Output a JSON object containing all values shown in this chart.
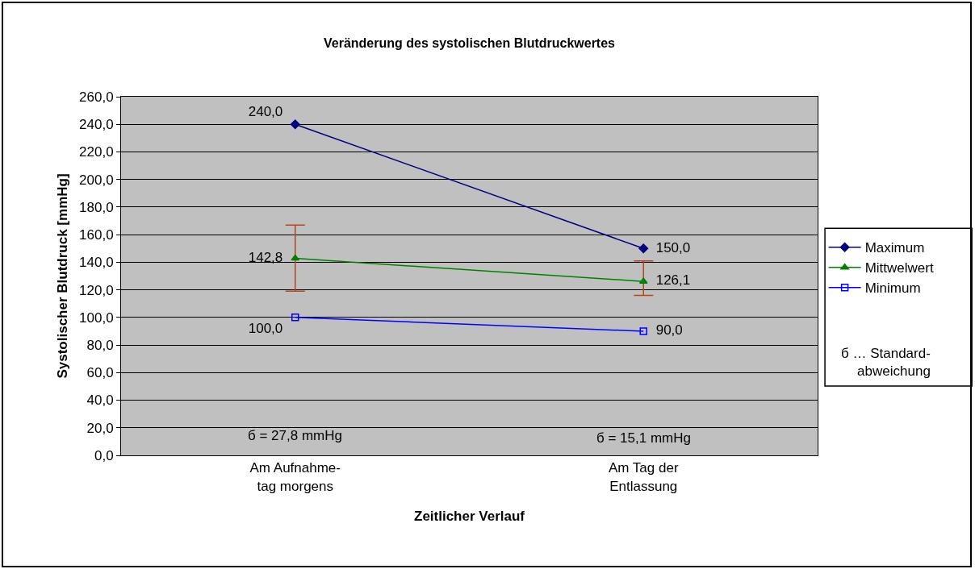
{
  "chart_data": {
    "type": "line",
    "title": "Veränderung des systolischen Blutdruckwertes",
    "xlabel": "Zeitlicher Verlauf",
    "ylabel": "Systolischer Blutdruck [mmHg]",
    "categories": [
      "Am Aufnahme-\ntag morgens",
      "Am Tag der\nEntlassung"
    ],
    "series": [
      {
        "name": "Maximum",
        "color": "#000080",
        "values": [
          240,
          150
        ],
        "value_labels": [
          "240,0",
          "150,0"
        ],
        "marker": "diamond"
      },
      {
        "name": "Mittwelwert",
        "color": "#008000",
        "values": [
          142.8,
          126.1
        ],
        "value_labels": [
          "142,8",
          "126,1"
        ],
        "marker": "triangle",
        "errors": [
          [
            119,
            167
          ],
          [
            116,
            141
          ]
        ]
      },
      {
        "name": "Minimum",
        "color": "#0000ff",
        "values": [
          100,
          90
        ],
        "value_labels": [
          "100,0",
          "90,0"
        ],
        "marker": "square"
      }
    ],
    "ylim": [
      0,
      260
    ],
    "yticks": [
      {
        "value": 0,
        "label": "0,0"
      },
      {
        "value": 20,
        "label": "20,0"
      },
      {
        "value": 40,
        "label": "40,0"
      },
      {
        "value": 60,
        "label": "60,0"
      },
      {
        "value": 80,
        "label": "80,0"
      },
      {
        "value": 100,
        "label": "100,0"
      },
      {
        "value": 120,
        "label": "120,0"
      },
      {
        "value": 140,
        "label": "140,0"
      },
      {
        "value": 160,
        "label": "160,0"
      },
      {
        "value": 180,
        "label": "180,0"
      },
      {
        "value": 200,
        "label": "200,0"
      },
      {
        "value": 220,
        "label": "220,0"
      },
      {
        "value": 240,
        "label": "240,0"
      },
      {
        "value": 260,
        "label": "260,0"
      }
    ],
    "grid": "y",
    "legend": "right",
    "annotations": [
      "б = 27,8 mmHg",
      "б = 15,1 mmHg",
      "б … Standard-\nabweichung"
    ]
  }
}
